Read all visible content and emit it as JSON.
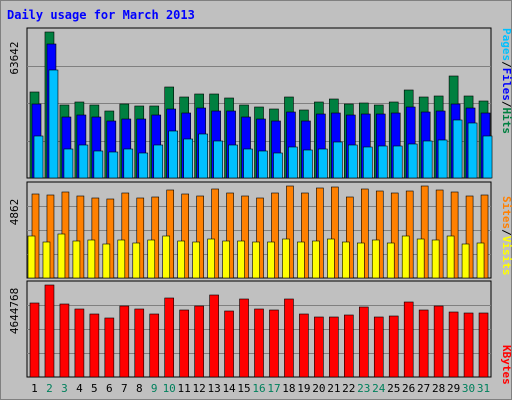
{
  "colors": {
    "page_bg": "#c0c0c0",
    "border_dark": "#808080",
    "plot_bg": "#c0c0c0",
    "hits": "#008040",
    "files": "#0000ff",
    "pages": "#00c0ff",
    "visits": "#ffff00",
    "sites": "#ff8000",
    "kbytes": "#ff0000",
    "weekday_label": "#000000",
    "weekend_label": "#00805c",
    "title": "#0000ff"
  },
  "chart_data": {
    "type": "bar",
    "title": "Daily usage for March 2013",
    "categories": [
      "1",
      "2",
      "3",
      "4",
      "5",
      "6",
      "7",
      "8",
      "9",
      "10",
      "11",
      "12",
      "13",
      "14",
      "15",
      "16",
      "17",
      "18",
      "19",
      "20",
      "21",
      "22",
      "23",
      "24",
      "25",
      "26",
      "27",
      "28",
      "29",
      "30",
      "31"
    ],
    "weekend_days": [
      "2",
      "3",
      "9",
      "10",
      "16",
      "17",
      "23",
      "24",
      "30",
      "31"
    ],
    "panels": [
      {
        "name": "usage",
        "ymax_label": "63642",
        "ylim": [
          0,
          63642
        ],
        "legend": [
          {
            "text": "Hits",
            "color": "#008040"
          },
          {
            "text": "/",
            "color": "#000000"
          },
          {
            "text": "Files",
            "color": "#0000ff"
          },
          {
            "text": "/",
            "color": "#000000"
          },
          {
            "text": "Pages",
            "color": "#00c0ff"
          }
        ],
        "series": [
          {
            "name": "Hits",
            "color": "#008040",
            "values": [
              37300,
              63642,
              31800,
              33200,
              31800,
              29400,
              32200,
              31400,
              31600,
              39800,
              35500,
              36600,
              36600,
              35000,
              31900,
              31000,
              30200,
              35400,
              29700,
              33100,
              34600,
              32200,
              32600,
              31900,
              33100,
              38300,
              35500,
              35900,
              44500,
              35900,
              33400
            ]
          },
          {
            "name": "Files",
            "color": "#0000ff",
            "values": [
              32300,
              58400,
              26400,
              27400,
              26400,
              24900,
              25900,
              25900,
              27400,
              29900,
              28400,
              30400,
              29400,
              29400,
              26400,
              25900,
              24900,
              28900,
              24900,
              27900,
              28400,
              27400,
              27900,
              27900,
              28400,
              30900,
              28900,
              29400,
              32300,
              30400,
              28400
            ]
          },
          {
            "name": "Pages",
            "color": "#00c0ff",
            "values": [
              18100,
              46900,
              12800,
              14300,
              11800,
              11300,
              12800,
              10800,
              14300,
              20600,
              17100,
              19100,
              16100,
              14300,
              12800,
              11800,
              10800,
              13300,
              12300,
              12800,
              15800,
              14300,
              13300,
              13800,
              13800,
              14800,
              16100,
              16600,
              25500,
              24100,
              18100
            ]
          }
        ]
      },
      {
        "name": "sites-visits",
        "ymax_label": "4862",
        "ylim": [
          0,
          4862
        ],
        "legend": [
          {
            "text": "Visits",
            "color": "#ffff00"
          },
          {
            "text": "/",
            "color": "#000000"
          },
          {
            "text": "Sites",
            "color": "#ff8000"
          }
        ],
        "series": [
          {
            "name": "Sites",
            "color": "#ff8000",
            "values": [
              4430,
              4390,
              4560,
              4350,
              4220,
              4190,
              4480,
              4240,
              4260,
              4640,
              4430,
              4350,
              4690,
              4480,
              4350,
              4220,
              4480,
              4862,
              4480,
              4740,
              4820,
              4260,
              4690,
              4610,
              4480,
              4610,
              4860,
              4640,
              4560,
              4350,
              4390
            ]
          },
          {
            "name": "Visits",
            "color": "#ffff00",
            "values": [
              2240,
              1920,
              2350,
              1980,
              1990,
              1810,
              1990,
              1860,
              2000,
              2230,
              1980,
              1900,
              2070,
              1980,
              1980,
              1900,
              1880,
              2050,
              1900,
              1980,
              2040,
              1900,
              1860,
              1990,
              1860,
              2240,
              2040,
              2020,
              2240,
              1790,
              1860
            ]
          }
        ]
      },
      {
        "name": "kbytes",
        "ymax_label": "4644768",
        "ylim": [
          0,
          4644768
        ],
        "legend": [
          {
            "text": "KBytes",
            "color": "#ff0000"
          }
        ],
        "series": [
          {
            "name": "KBytes",
            "color": "#ff0000",
            "values": [
              3760000,
              4644768,
              3680000,
              3420000,
              3190000,
              2990000,
              3600000,
              3450000,
              3200000,
              3990000,
              3360000,
              3600000,
              4160000,
              3330000,
              3960000,
              3450000,
              3400000,
              3960000,
              3200000,
              3040000,
              3040000,
              3140000,
              3530000,
              3040000,
              3090000,
              3790000,
              3400000,
              3600000,
              3280000,
              3250000,
              3230000
            ]
          }
        ]
      }
    ]
  }
}
